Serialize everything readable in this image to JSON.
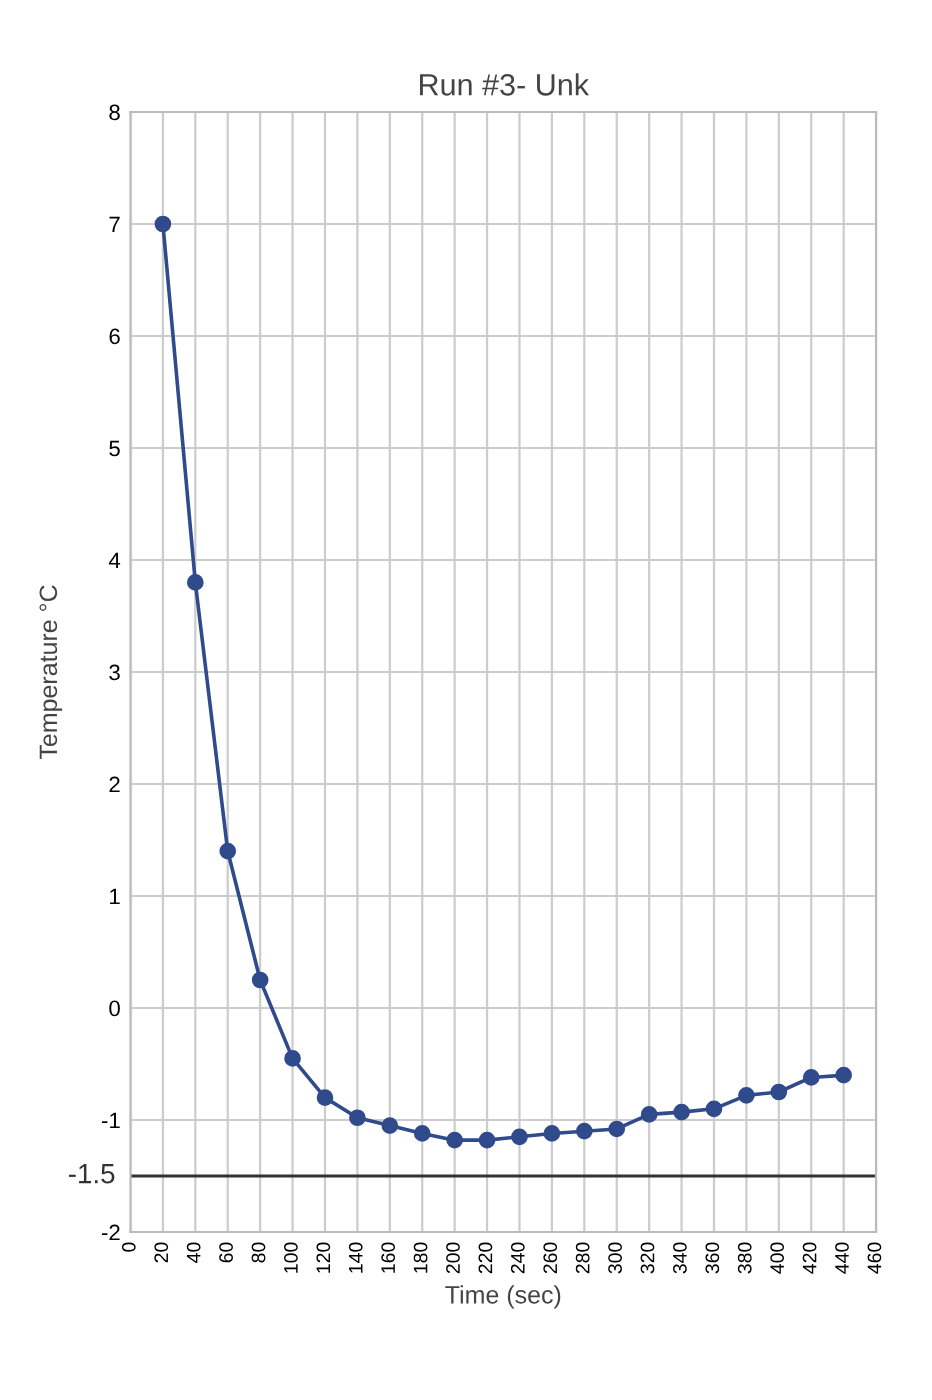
{
  "chart_data": {
    "type": "line",
    "title": "Run #3- Unk",
    "xlabel": "Time (sec)",
    "ylabel": "Temperature °C",
    "x": [
      20,
      40,
      60,
      80,
      100,
      120,
      140,
      160,
      180,
      200,
      220,
      240,
      260,
      280,
      300,
      320,
      340,
      360,
      380,
      400,
      420,
      440
    ],
    "series": [
      {
        "color": "#2f4b8c",
        "values": [
          7.0,
          3.8,
          1.4,
          0.25,
          -0.45,
          -0.8,
          -0.98,
          -1.05,
          -1.12,
          -1.18,
          -1.18,
          -1.15,
          -1.12,
          -1.1,
          -1.08,
          -0.95,
          -0.93,
          -0.9,
          -0.78,
          -0.75,
          -0.62,
          -0.6
        ]
      }
    ],
    "xlim": [
      0,
      460
    ],
    "xticks": [
      0,
      20,
      40,
      60,
      80,
      100,
      120,
      140,
      160,
      180,
      200,
      220,
      240,
      260,
      280,
      300,
      320,
      340,
      360,
      380,
      400,
      420,
      440,
      460
    ],
    "ylim": [
      -2,
      8
    ],
    "yticks": [
      -2,
      -1,
      0,
      1,
      2,
      3,
      4,
      5,
      6,
      7,
      8
    ],
    "grid": true,
    "marker": "circle",
    "line_style": "solid",
    "legend": false,
    "ref_lines": [
      {
        "axis": "y",
        "value": -1.5,
        "label": "-1.5",
        "color": "#333333"
      }
    ]
  }
}
